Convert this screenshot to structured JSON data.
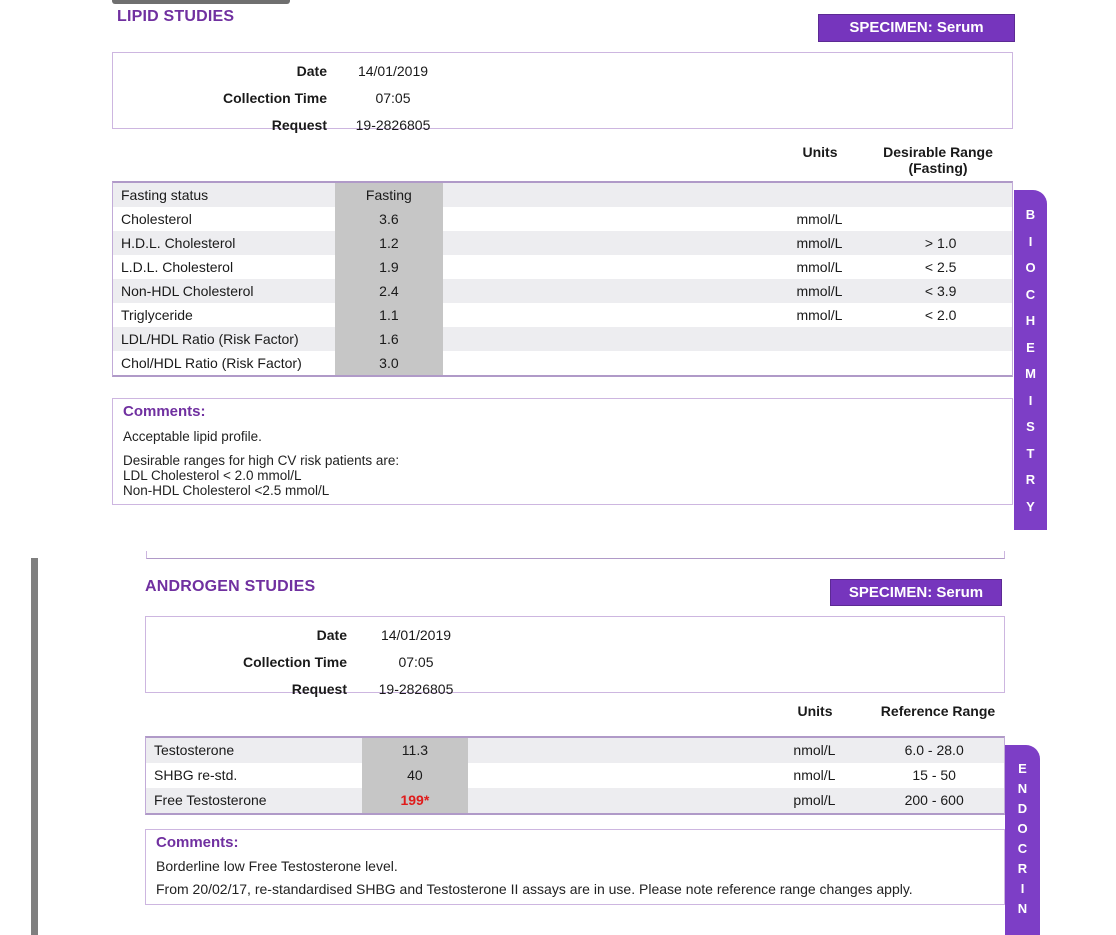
{
  "sections": [
    {
      "id": "lipid",
      "title": "LIPID STUDIES",
      "specimen_badge": "SPECIMEN: Serum",
      "info_rows": [
        {
          "label": "Date",
          "value": "14/01/2019"
        },
        {
          "label": "Collection Time",
          "value": "07:05"
        },
        {
          "label": "Request",
          "value": "19-2826805"
        }
      ],
      "column_headers": {
        "units": "Units",
        "range": "Desirable Range",
        "range_note": "(Fasting)"
      },
      "results": [
        {
          "name": "Fasting status",
          "value": "Fasting",
          "units": "",
          "range": "",
          "abnormal": false
        },
        {
          "name": "Cholesterol",
          "value": "3.6",
          "units": "mmol/L",
          "range": "",
          "abnormal": false
        },
        {
          "name": "H.D.L. Cholesterol",
          "value": "1.2",
          "units": "mmol/L",
          "range": "> 1.0",
          "abnormal": false
        },
        {
          "name": "L.D.L. Cholesterol",
          "value": "1.9",
          "units": "mmol/L",
          "range": "< 2.5",
          "abnormal": false
        },
        {
          "name": "Non-HDL Cholesterol",
          "value": "2.4",
          "units": "mmol/L",
          "range": "< 3.9",
          "abnormal": false
        },
        {
          "name": "Triglyceride",
          "value": "1.1",
          "units": "mmol/L",
          "range": "< 2.0",
          "abnormal": false
        },
        {
          "name": "LDL/HDL Ratio (Risk Factor)",
          "value": "1.6",
          "units": "",
          "range": "",
          "abnormal": false
        },
        {
          "name": "Chol/HDL Ratio (Risk Factor)",
          "value": "3.0",
          "units": "",
          "range": "",
          "abnormal": false
        }
      ],
      "comments_label": "Comments:",
      "comment_paragraphs": [
        [
          "Acceptable lipid profile."
        ],
        [
          "Desirable ranges for high CV risk patients are:",
          "LDL Cholesterol < 2.0 mmol/L",
          "Non-HDL Cholesterol <2.5 mmol/L"
        ]
      ],
      "side_tab": "BIOCHEMISTRY"
    },
    {
      "id": "androgen",
      "title": "ANDROGEN STUDIES",
      "specimen_badge": "SPECIMEN: Serum",
      "info_rows": [
        {
          "label": "Date",
          "value": "14/01/2019"
        },
        {
          "label": "Collection Time",
          "value": "07:05"
        },
        {
          "label": "Request",
          "value": "19-2826805"
        }
      ],
      "column_headers": {
        "units": "Units",
        "range": "Reference Range",
        "range_note": ""
      },
      "results": [
        {
          "name": "Testosterone",
          "value": "11.3",
          "units": "nmol/L",
          "range": "6.0 - 28.0",
          "abnormal": false
        },
        {
          "name": "SHBG re-std.",
          "value": "40",
          "units": "nmol/L",
          "range": "15 - 50",
          "abnormal": false
        },
        {
          "name": "Free Testosterone",
          "value": "199*",
          "units": "pmol/L",
          "range": "200 - 600",
          "abnormal": true
        }
      ],
      "comments_label": "Comments:",
      "comment_paragraphs": [
        [
          "Borderline low Free Testosterone level."
        ],
        [
          "From 20/02/17, re-standardised SHBG and Testosterone II assays are in use. Please note reference range changes apply."
        ]
      ],
      "side_tab": "ENDOCRIN"
    }
  ],
  "colors": {
    "accent_purple": "#7030A0",
    "badge_purple": "#7635bd",
    "tab_purple": "#7d3ec6",
    "abnormal_red": "#e01b1b",
    "value_column_gray": "#c6c6c6"
  }
}
